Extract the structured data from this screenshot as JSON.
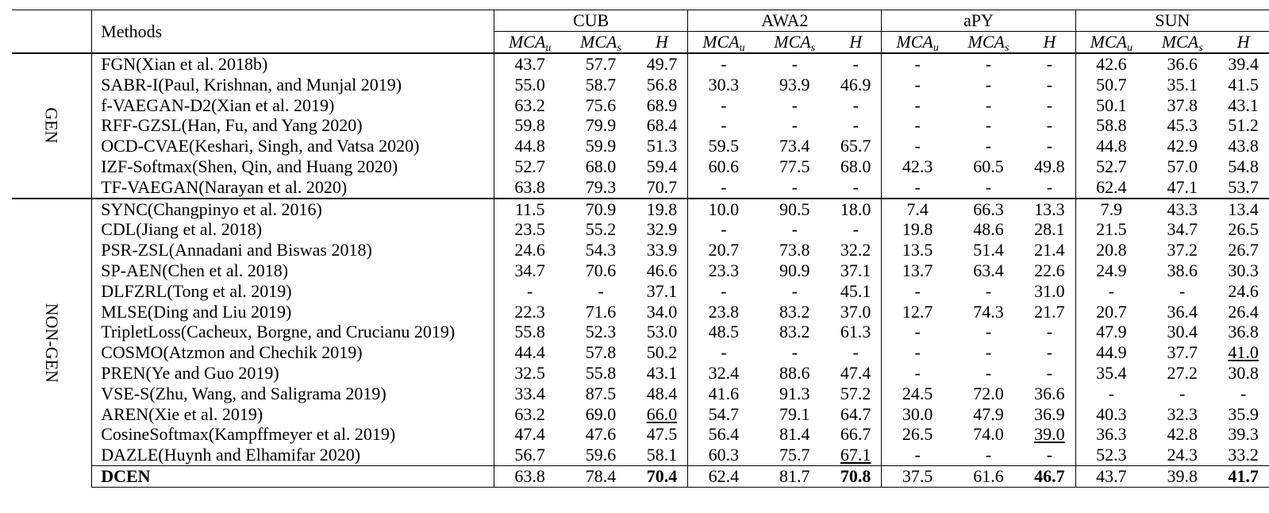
{
  "header": {
    "methods_label": "Methods",
    "datasets": [
      "CUB",
      "AWA2",
      "aPY",
      "SUN"
    ],
    "metric_u": "MCA",
    "metric_u_sub": "u",
    "metric_s": "MCA",
    "metric_s_sub": "s",
    "metric_h": "H"
  },
  "groups": {
    "gen_label": "GEN",
    "nongen_label": "NON-GEN"
  },
  "gen_rows": [
    {
      "method": "FGN(Xian et al. 2018b)",
      "values": [
        "43.7",
        "57.7",
        "49.7",
        "-",
        "-",
        "-",
        "-",
        "-",
        "-",
        "42.6",
        "36.6",
        "39.4"
      ]
    },
    {
      "method": "SABR-I(Paul, Krishnan, and Munjal 2019)",
      "values": [
        "55.0",
        "58.7",
        "56.8",
        "30.3",
        "93.9",
        "46.9",
        "-",
        "-",
        "-",
        "50.7",
        "35.1",
        "41.5"
      ]
    },
    {
      "method": "f-VAEGAN-D2(Xian et al. 2019)",
      "values": [
        "63.2",
        "75.6",
        "68.9",
        "-",
        "-",
        "-",
        "-",
        "-",
        "-",
        "50.1",
        "37.8",
        "43.1"
      ]
    },
    {
      "method": "RFF-GZSL(Han, Fu, and Yang 2020)",
      "values": [
        "59.8",
        "79.9",
        "68.4",
        "-",
        "-",
        "-",
        "-",
        "-",
        "-",
        "58.8",
        "45.3",
        "51.2"
      ]
    },
    {
      "method": "OCD-CVAE(Keshari, Singh, and Vatsa 2020)",
      "values": [
        "44.8",
        "59.9",
        "51.3",
        "59.5",
        "73.4",
        "65.7",
        "-",
        "-",
        "-",
        "44.8",
        "42.9",
        "43.8"
      ]
    },
    {
      "method": "IZF-Softmax(Shen, Qin, and Huang 2020)",
      "values": [
        "52.7",
        "68.0",
        "59.4",
        "60.6",
        "77.5",
        "68.0",
        "42.3",
        "60.5",
        "49.8",
        "52.7",
        "57.0",
        "54.8"
      ]
    },
    {
      "method": "TF-VAEGAN(Narayan et al. 2020)",
      "values": [
        "63.8",
        "79.3",
        "70.7",
        "-",
        "-",
        "-",
        "-",
        "-",
        "-",
        "62.4",
        "47.1",
        "53.7"
      ]
    }
  ],
  "nongen_rows": [
    {
      "method": "SYNC(Changpinyo et al. 2016)",
      "values": [
        "11.5",
        "70.9",
        "19.8",
        "10.0",
        "90.5",
        "18.0",
        "7.4",
        "66.3",
        "13.3",
        "7.9",
        "43.3",
        "13.4"
      ]
    },
    {
      "method": "CDL(Jiang et al. 2018)",
      "values": [
        "23.5",
        "55.2",
        "32.9",
        "-",
        "-",
        "-",
        "19.8",
        "48.6",
        "28.1",
        "21.5",
        "34.7",
        "26.5"
      ]
    },
    {
      "method": "PSR-ZSL(Annadani and Biswas 2018)",
      "values": [
        "24.6",
        "54.3",
        "33.9",
        "20.7",
        "73.8",
        "32.2",
        "13.5",
        "51.4",
        "21.4",
        "20.8",
        "37.2",
        "26.7"
      ]
    },
    {
      "method": "SP-AEN(Chen et al. 2018)",
      "values": [
        "34.7",
        "70.6",
        "46.6",
        "23.3",
        "90.9",
        "37.1",
        "13.7",
        "63.4",
        "22.6",
        "24.9",
        "38.6",
        "30.3"
      ]
    },
    {
      "method": "DLFZRL(Tong et al. 2019)",
      "values": [
        "-",
        "-",
        "37.1",
        "-",
        "-",
        "45.1",
        "-",
        "-",
        "31.0",
        "-",
        "-",
        "24.6"
      ]
    },
    {
      "method": "MLSE(Ding and Liu 2019)",
      "values": [
        "22.3",
        "71.6",
        "34.0",
        "23.8",
        "83.2",
        "37.0",
        "12.7",
        "74.3",
        "21.7",
        "20.7",
        "36.4",
        "26.4"
      ]
    },
    {
      "method": "TripletLoss(Cacheux, Borgne, and Crucianu 2019)",
      "values": [
        "55.8",
        "52.3",
        "53.0",
        "48.5",
        "83.2",
        "61.3",
        "-",
        "-",
        "-",
        "47.9",
        "30.4",
        "36.8"
      ]
    },
    {
      "method": "COSMO(Atzmon and Chechik 2019)",
      "values": [
        "44.4",
        "57.8",
        "50.2",
        "-",
        "-",
        "-",
        "-",
        "-",
        "-",
        "44.9",
        "37.7",
        "41.0"
      ]
    },
    {
      "method": "PREN(Ye and Guo 2019)",
      "values": [
        "32.5",
        "55.8",
        "43.1",
        "32.4",
        "88.6",
        "47.4",
        "-",
        "-",
        "-",
        "35.4",
        "27.2",
        "30.8"
      ]
    },
    {
      "method": "VSE-S(Zhu, Wang, and Saligrama 2019)",
      "values": [
        "33.4",
        "87.5",
        "48.4",
        "41.6",
        "91.3",
        "57.2",
        "24.5",
        "72.0",
        "36.6",
        "-",
        "-",
        "-"
      ]
    },
    {
      "method": "AREN(Xie et al. 2019)",
      "values": [
        "63.2",
        "69.0",
        "66.0",
        "54.7",
        "79.1",
        "64.7",
        "30.0",
        "47.9",
        "36.9",
        "40.3",
        "32.3",
        "35.9"
      ]
    },
    {
      "method": "CosineSoftmax(Kampffmeyer et al. 2019)",
      "values": [
        "47.4",
        "47.6",
        "47.5",
        "56.4",
        "81.4",
        "66.7",
        "26.5",
        "74.0",
        "39.0",
        "36.3",
        "42.8",
        "39.3"
      ]
    },
    {
      "method": "DAZLE(Huynh and Elhamifar 2020)",
      "values": [
        "56.7",
        "59.6",
        "58.1",
        "60.3",
        "75.7",
        "67.1",
        "-",
        "-",
        "-",
        "52.3",
        "24.3",
        "33.2"
      ]
    }
  ],
  "ours_row": {
    "method": "DCEN",
    "values": [
      "63.8",
      "78.4",
      "70.4",
      "62.4",
      "81.7",
      "70.8",
      "37.5",
      "61.6",
      "46.7",
      "43.7",
      "39.8",
      "41.7"
    ]
  }
}
